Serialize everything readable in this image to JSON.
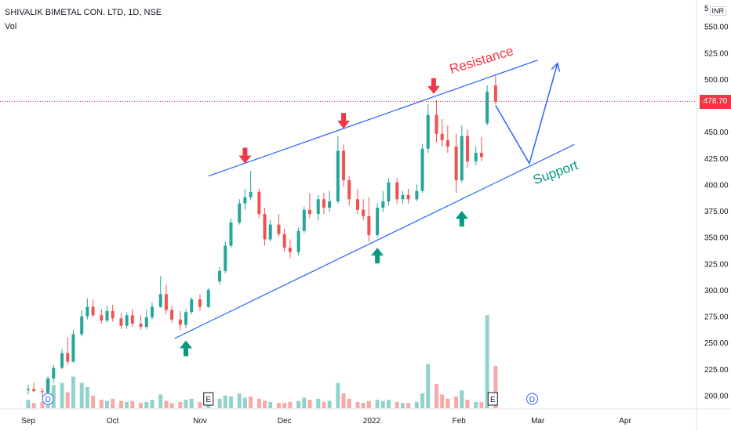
{
  "header": {
    "title": "SHIVALIK BIMETAL CON. LTD, 1D, NSE",
    "volume_label": "Vol",
    "currency": "INR"
  },
  "last_price": {
    "value": 478.7,
    "label": "478.70",
    "color": "#f23645"
  },
  "chart_data": {
    "type": "candlestick",
    "ylim": [
      187,
      575
    ],
    "y_ticks": [
      200,
      225,
      250,
      275,
      300,
      325,
      350,
      375,
      400,
      425,
      450,
      475,
      500,
      525,
      550
    ],
    "y_tick_labels": [
      "200.00",
      "225.00",
      "250.00",
      "275.00",
      "300.00",
      "325.00",
      "350.00",
      "375.00",
      "400.00",
      "425.00",
      "450.00",
      "475.00",
      "500.00",
      "525.00",
      "550.00"
    ],
    "x_labels": [
      {
        "label": "Sep",
        "date": "2021-09-01"
      },
      {
        "label": "Oct",
        "date": "2021-10-01"
      },
      {
        "label": "Nov",
        "date": "2021-11-01"
      },
      {
        "label": "Dec",
        "date": "2021-12-01"
      },
      {
        "label": "2022",
        "date": "2022-01-01"
      },
      {
        "label": "Feb",
        "date": "2022-02-01"
      },
      {
        "label": "Mar",
        "date": "2022-03-01"
      },
      {
        "label": "Apr",
        "date": "2022-04-01"
      }
    ],
    "up_color": "#26a69a",
    "down_color": "#ef5350",
    "candles": [
      {
        "d": "2021-09-01",
        "o": 205,
        "h": 210,
        "l": 201,
        "c": 206
      },
      {
        "d": "2021-09-03",
        "o": 206,
        "h": 212,
        "l": 203,
        "c": 204
      },
      {
        "d": "2021-09-06",
        "o": 204,
        "h": 207,
        "l": 199,
        "c": 203
      },
      {
        "d": "2021-09-08",
        "o": 203,
        "h": 218,
        "l": 202,
        "c": 216
      },
      {
        "d": "2021-09-10",
        "o": 216,
        "h": 229,
        "l": 212,
        "c": 226
      },
      {
        "d": "2021-09-13",
        "o": 226,
        "h": 244,
        "l": 225,
        "c": 240
      },
      {
        "d": "2021-09-15",
        "o": 240,
        "h": 255,
        "l": 229,
        "c": 232
      },
      {
        "d": "2021-09-17",
        "o": 232,
        "h": 262,
        "l": 231,
        "c": 258
      },
      {
        "d": "2021-09-20",
        "o": 258,
        "h": 281,
        "l": 256,
        "c": 275
      },
      {
        "d": "2021-09-22",
        "o": 275,
        "h": 292,
        "l": 272,
        "c": 284
      },
      {
        "d": "2021-09-24",
        "o": 284,
        "h": 291,
        "l": 274,
        "c": 276
      },
      {
        "d": "2021-09-27",
        "o": 276,
        "h": 282,
        "l": 268,
        "c": 271
      },
      {
        "d": "2021-09-29",
        "o": 271,
        "h": 285,
        "l": 269,
        "c": 280
      },
      {
        "d": "2021-10-01",
        "o": 280,
        "h": 286,
        "l": 270,
        "c": 273
      },
      {
        "d": "2021-10-04",
        "o": 273,
        "h": 278,
        "l": 263,
        "c": 266
      },
      {
        "d": "2021-10-06",
        "o": 266,
        "h": 279,
        "l": 263,
        "c": 276
      },
      {
        "d": "2021-10-08",
        "o": 276,
        "h": 282,
        "l": 265,
        "c": 268
      },
      {
        "d": "2021-10-11",
        "o": 268,
        "h": 276,
        "l": 262,
        "c": 265
      },
      {
        "d": "2021-10-13",
        "o": 265,
        "h": 281,
        "l": 263,
        "c": 274
      },
      {
        "d": "2021-10-15",
        "o": 274,
        "h": 288,
        "l": 272,
        "c": 284
      },
      {
        "d": "2021-10-18",
        "o": 284,
        "h": 313,
        "l": 283,
        "c": 296
      },
      {
        "d": "2021-10-20",
        "o": 296,
        "h": 305,
        "l": 277,
        "c": 281
      },
      {
        "d": "2021-10-22",
        "o": 281,
        "h": 285,
        "l": 269,
        "c": 272
      },
      {
        "d": "2021-10-25",
        "o": 272,
        "h": 280,
        "l": 262,
        "c": 267
      },
      {
        "d": "2021-10-27",
        "o": 267,
        "h": 282,
        "l": 264,
        "c": 279
      },
      {
        "d": "2021-10-29",
        "o": 279,
        "h": 293,
        "l": 277,
        "c": 291
      },
      {
        "d": "2021-11-01",
        "o": 291,
        "h": 296,
        "l": 280,
        "c": 284
      },
      {
        "d": "2021-11-04",
        "o": 284,
        "h": 302,
        "l": 283,
        "c": 300
      },
      {
        "d": "2021-11-08",
        "o": 308,
        "h": 322,
        "l": 305,
        "c": 318
      },
      {
        "d": "2021-11-10",
        "o": 318,
        "h": 346,
        "l": 316,
        "c": 342
      },
      {
        "d": "2021-11-12",
        "o": 342,
        "h": 368,
        "l": 340,
        "c": 364
      },
      {
        "d": "2021-11-15",
        "o": 364,
        "h": 386,
        "l": 362,
        "c": 382
      },
      {
        "d": "2021-11-17",
        "o": 382,
        "h": 396,
        "l": 376,
        "c": 388
      },
      {
        "d": "2021-11-19",
        "o": 388,
        "h": 413,
        "l": 385,
        "c": 393
      },
      {
        "d": "2021-11-22",
        "o": 393,
        "h": 396,
        "l": 368,
        "c": 372
      },
      {
        "d": "2021-11-24",
        "o": 372,
        "h": 378,
        "l": 342,
        "c": 348
      },
      {
        "d": "2021-11-26",
        "o": 348,
        "h": 366,
        "l": 346,
        "c": 362
      },
      {
        "d": "2021-11-29",
        "o": 362,
        "h": 372,
        "l": 350,
        "c": 353
      },
      {
        "d": "2021-12-01",
        "o": 353,
        "h": 358,
        "l": 336,
        "c": 340
      },
      {
        "d": "2021-12-03",
        "o": 340,
        "h": 348,
        "l": 330,
        "c": 336
      },
      {
        "d": "2021-12-06",
        "o": 336,
        "h": 359,
        "l": 333,
        "c": 356
      },
      {
        "d": "2021-12-08",
        "o": 356,
        "h": 379,
        "l": 354,
        "c": 376
      },
      {
        "d": "2021-12-10",
        "o": 376,
        "h": 392,
        "l": 368,
        "c": 372
      },
      {
        "d": "2021-12-13",
        "o": 372,
        "h": 390,
        "l": 366,
        "c": 386
      },
      {
        "d": "2021-12-15",
        "o": 386,
        "h": 392,
        "l": 372,
        "c": 378
      },
      {
        "d": "2021-12-17",
        "o": 378,
        "h": 394,
        "l": 374,
        "c": 384
      },
      {
        "d": "2021-12-20",
        "o": 384,
        "h": 446,
        "l": 382,
        "c": 432
      },
      {
        "d": "2021-12-22",
        "o": 432,
        "h": 438,
        "l": 398,
        "c": 404
      },
      {
        "d": "2021-12-24",
        "o": 404,
        "h": 408,
        "l": 380,
        "c": 386
      },
      {
        "d": "2021-12-27",
        "o": 386,
        "h": 396,
        "l": 372,
        "c": 376
      },
      {
        "d": "2021-12-29",
        "o": 376,
        "h": 386,
        "l": 366,
        "c": 370
      },
      {
        "d": "2021-12-31",
        "o": 370,
        "h": 388,
        "l": 346,
        "c": 352
      },
      {
        "d": "2022-01-03",
        "o": 352,
        "h": 382,
        "l": 350,
        "c": 378
      },
      {
        "d": "2022-01-05",
        "o": 378,
        "h": 394,
        "l": 374,
        "c": 384
      },
      {
        "d": "2022-01-07",
        "o": 384,
        "h": 406,
        "l": 380,
        "c": 402
      },
      {
        "d": "2022-01-10",
        "o": 402,
        "h": 406,
        "l": 382,
        "c": 386
      },
      {
        "d": "2022-01-12",
        "o": 386,
        "h": 394,
        "l": 382,
        "c": 390
      },
      {
        "d": "2022-01-14",
        "o": 390,
        "h": 396,
        "l": 382,
        "c": 386
      },
      {
        "d": "2022-01-17",
        "o": 386,
        "h": 400,
        "l": 384,
        "c": 394
      },
      {
        "d": "2022-01-19",
        "o": 394,
        "h": 438,
        "l": 392,
        "c": 434
      },
      {
        "d": "2022-01-21",
        "o": 434,
        "h": 476,
        "l": 430,
        "c": 466
      },
      {
        "d": "2022-01-24",
        "o": 466,
        "h": 480,
        "l": 440,
        "c": 448
      },
      {
        "d": "2022-01-26",
        "o": 448,
        "h": 462,
        "l": 436,
        "c": 442
      },
      {
        "d": "2022-01-28",
        "o": 442,
        "h": 456,
        "l": 430,
        "c": 436
      },
      {
        "d": "2022-01-31",
        "o": 436,
        "h": 448,
        "l": 392,
        "c": 404
      },
      {
        "d": "2022-02-02",
        "o": 404,
        "h": 456,
        "l": 402,
        "c": 446
      },
      {
        "d": "2022-02-04",
        "o": 446,
        "h": 452,
        "l": 416,
        "c": 422
      },
      {
        "d": "2022-02-07",
        "o": 422,
        "h": 436,
        "l": 418,
        "c": 430
      },
      {
        "d": "2022-02-09",
        "o": 430,
        "h": 445,
        "l": 422,
        "c": 426
      },
      {
        "d": "2022-02-11",
        "o": 458,
        "h": 494,
        "l": 456,
        "c": 488
      },
      {
        "d": "2022-02-14",
        "o": 494,
        "h": 504,
        "l": 476,
        "c": 478.7
      }
    ],
    "volume": [
      {
        "d": "2021-09-01",
        "v": 8,
        "up": true
      },
      {
        "d": "2021-09-03",
        "v": 5,
        "up": false
      },
      {
        "d": "2021-09-06",
        "v": 6,
        "up": false
      },
      {
        "d": "2021-09-08",
        "v": 28,
        "up": true
      },
      {
        "d": "2021-09-10",
        "v": 22,
        "up": true
      },
      {
        "d": "2021-09-13",
        "v": 24,
        "up": true
      },
      {
        "d": "2021-09-15",
        "v": 15,
        "up": false
      },
      {
        "d": "2021-09-17",
        "v": 30,
        "up": true
      },
      {
        "d": "2021-09-20",
        "v": 24,
        "up": true
      },
      {
        "d": "2021-09-22",
        "v": 20,
        "up": true
      },
      {
        "d": "2021-09-24",
        "v": 12,
        "up": false
      },
      {
        "d": "2021-09-27",
        "v": 8,
        "up": false
      },
      {
        "d": "2021-09-29",
        "v": 7,
        "up": true
      },
      {
        "d": "2021-10-01",
        "v": 9,
        "up": false
      },
      {
        "d": "2021-10-04",
        "v": 7,
        "up": false
      },
      {
        "d": "2021-10-06",
        "v": 6,
        "up": true
      },
      {
        "d": "2021-10-08",
        "v": 7,
        "up": false
      },
      {
        "d": "2021-10-11",
        "v": 5,
        "up": false
      },
      {
        "d": "2021-10-13",
        "v": 6,
        "up": true
      },
      {
        "d": "2021-10-15",
        "v": 8,
        "up": true
      },
      {
        "d": "2021-10-18",
        "v": 13,
        "up": true
      },
      {
        "d": "2021-10-20",
        "v": 7,
        "up": false
      },
      {
        "d": "2021-10-22",
        "v": 5,
        "up": false
      },
      {
        "d": "2021-10-25",
        "v": 6,
        "up": false
      },
      {
        "d": "2021-10-27",
        "v": 8,
        "up": true
      },
      {
        "d": "2021-10-29",
        "v": 9,
        "up": true
      },
      {
        "d": "2021-11-01",
        "v": 6,
        "up": false
      },
      {
        "d": "2021-11-04",
        "v": 7,
        "up": true
      },
      {
        "d": "2021-11-08",
        "v": 9,
        "up": true
      },
      {
        "d": "2021-11-10",
        "v": 12,
        "up": true
      },
      {
        "d": "2021-11-12",
        "v": 11,
        "up": true
      },
      {
        "d": "2021-11-15",
        "v": 14,
        "up": true
      },
      {
        "d": "2021-11-17",
        "v": 10,
        "up": true
      },
      {
        "d": "2021-11-19",
        "v": 11,
        "up": false
      },
      {
        "d": "2021-11-22",
        "v": 9,
        "up": false
      },
      {
        "d": "2021-11-24",
        "v": 7,
        "up": false
      },
      {
        "d": "2021-11-26",
        "v": 6,
        "up": true
      },
      {
        "d": "2021-11-29",
        "v": 5,
        "up": false
      },
      {
        "d": "2021-12-01",
        "v": 5,
        "up": false
      },
      {
        "d": "2021-12-03",
        "v": 6,
        "up": false
      },
      {
        "d": "2021-12-06",
        "v": 7,
        "up": true
      },
      {
        "d": "2021-12-08",
        "v": 10,
        "up": true
      },
      {
        "d": "2021-12-10",
        "v": 8,
        "up": false
      },
      {
        "d": "2021-12-13",
        "v": 9,
        "up": true
      },
      {
        "d": "2021-12-15",
        "v": 6,
        "up": false
      },
      {
        "d": "2021-12-17",
        "v": 7,
        "up": true
      },
      {
        "d": "2021-12-20",
        "v": 24,
        "up": true
      },
      {
        "d": "2021-12-22",
        "v": 14,
        "up": false
      },
      {
        "d": "2021-12-24",
        "v": 9,
        "up": false
      },
      {
        "d": "2021-12-27",
        "v": 6,
        "up": false
      },
      {
        "d": "2021-12-29",
        "v": 5,
        "up": false
      },
      {
        "d": "2021-12-31",
        "v": 7,
        "up": false
      },
      {
        "d": "2022-01-03",
        "v": 8,
        "up": true
      },
      {
        "d": "2022-01-05",
        "v": 7,
        "up": true
      },
      {
        "d": "2022-01-07",
        "v": 8,
        "up": true
      },
      {
        "d": "2022-01-10",
        "v": 6,
        "up": false
      },
      {
        "d": "2022-01-12",
        "v": 5,
        "up": true
      },
      {
        "d": "2022-01-14",
        "v": 5,
        "up": false
      },
      {
        "d": "2022-01-17",
        "v": 6,
        "up": true
      },
      {
        "d": "2022-01-19",
        "v": 14,
        "up": true
      },
      {
        "d": "2022-01-21",
        "v": 42,
        "up": true
      },
      {
        "d": "2022-01-24",
        "v": 23,
        "up": false
      },
      {
        "d": "2022-01-26",
        "v": 13,
        "up": false
      },
      {
        "d": "2022-01-28",
        "v": 9,
        "up": false
      },
      {
        "d": "2022-01-31",
        "v": 11,
        "up": false
      },
      {
        "d": "2022-02-02",
        "v": 17,
        "up": true
      },
      {
        "d": "2022-02-04",
        "v": 8,
        "up": false
      },
      {
        "d": "2022-02-07",
        "v": 6,
        "up": true
      },
      {
        "d": "2022-02-09",
        "v": 6,
        "up": false
      },
      {
        "d": "2022-02-11",
        "v": 88,
        "up": true
      },
      {
        "d": "2022-02-14",
        "v": 40,
        "up": false
      }
    ],
    "annotations": {
      "resistance_label": "Resistance",
      "support_label": "Support",
      "resistance_color": "#f23645",
      "support_color": "#089981",
      "trendline_color": "#2962ff",
      "resistance_line": [
        {
          "d": "2021-11-04",
          "p": 408
        },
        {
          "d": "2022-03-01",
          "p": 518
        }
      ],
      "support_line": [
        {
          "d": "2021-10-23",
          "p": 254
        },
        {
          "d": "2022-03-14",
          "p": 438
        }
      ],
      "projection_path": [
        {
          "d": "2022-02-14",
          "p": 475
        },
        {
          "d": "2022-02-26",
          "p": 420
        },
        {
          "d": "2022-03-08",
          "p": 515
        }
      ],
      "resistance_arrows": [
        {
          "d": "2021-11-17",
          "p": 420
        },
        {
          "d": "2021-12-22",
          "p": 453
        },
        {
          "d": "2022-01-23",
          "p": 486
        }
      ],
      "support_arrows": [
        {
          "d": "2021-10-27",
          "p": 252
        },
        {
          "d": "2022-01-03",
          "p": 340
        },
        {
          "d": "2022-02-02",
          "p": 375
        }
      ],
      "event_markers": [
        {
          "d": "2021-09-08",
          "label": "D"
        },
        {
          "d": "2021-11-04",
          "label": "E"
        },
        {
          "d": "2022-02-13",
          "label": "E"
        },
        {
          "d": "2022-02-27",
          "label": "D"
        }
      ]
    }
  }
}
